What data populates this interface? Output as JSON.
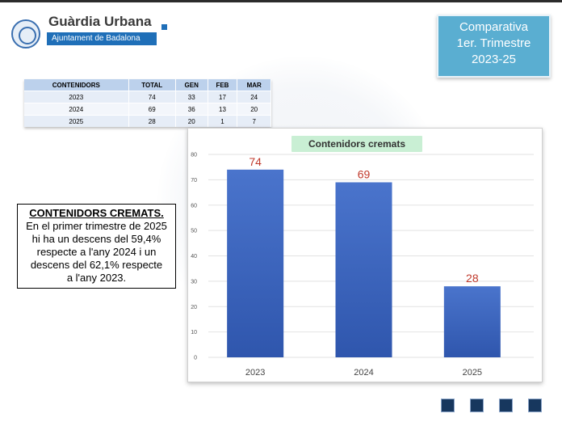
{
  "logo": {
    "title": "Guàrdia Urbana",
    "subtitle": "Ajuntament de Badalona",
    "emblem_icon": "badalona-coat-of-arms-icon"
  },
  "compare_box": {
    "line1": "Comparativa",
    "line2": "1er. Trimestre",
    "line3": "2023-25",
    "color": "#5aaed1"
  },
  "table": {
    "headers": [
      "CONTENIDORS",
      "TOTAL",
      "GEN",
      "FEB",
      "MAR"
    ],
    "rows": [
      [
        "2023",
        "74",
        "33",
        "17",
        "24"
      ],
      [
        "2024",
        "69",
        "36",
        "13",
        "20"
      ],
      [
        "2025",
        "28",
        "20",
        "1",
        "7"
      ]
    ]
  },
  "textbox": {
    "title": "CONTENIDORS CREMATS.",
    "body_lines": [
      "En el primer trimestre de 2025",
      "hi ha un descens del 59,4%",
      "respecte a l'any 2024 i un",
      "descens del 62,1% respecte",
      "a l'any 2023."
    ]
  },
  "chart_data": {
    "type": "bar",
    "title": "Contenidors cremats",
    "categories": [
      "2023",
      "2024",
      "2025"
    ],
    "values": [
      74,
      69,
      28
    ],
    "ylim": [
      0,
      80
    ],
    "yticks": [
      0,
      10,
      20,
      30,
      40,
      50,
      60,
      70,
      80
    ],
    "grid": true,
    "xlabel": "",
    "ylabel": "",
    "bar_color": "#3a62b8",
    "label_color": "#c0392b",
    "title_bg": "#c9efd4"
  },
  "nav_buttons": {
    "count": 4,
    "color": "#17375e"
  }
}
